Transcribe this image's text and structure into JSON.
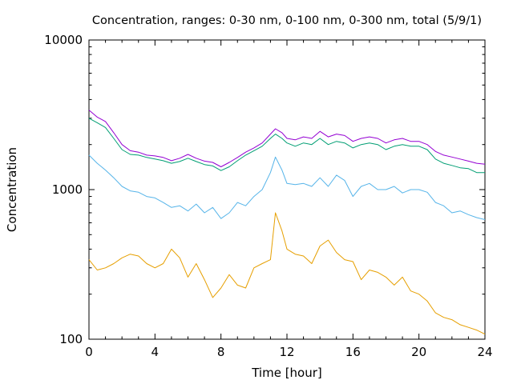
{
  "chart_data": {
    "type": "line",
    "title": "Concentration, ranges: 0-30 nm, 0-100 nm, 0-300 nm, total (5/9/1)",
    "xlabel": "Time [hour]",
    "ylabel": "Concentration",
    "xlim": [
      0,
      24
    ],
    "ylim": [
      100,
      10000
    ],
    "yscale": "log",
    "grid": false,
    "xticks": [
      0,
      4,
      8,
      12,
      16,
      20,
      24
    ],
    "xtick_labels": [
      "0",
      "4",
      "8",
      "12",
      "16",
      "20",
      "24"
    ],
    "yticks": [
      100,
      1000,
      10000
    ],
    "ytick_labels": [
      "100",
      "1000",
      "10000"
    ],
    "series": [
      {
        "color": "#9400d3",
        "x": [
          0,
          0.5,
          1,
          1.5,
          2,
          2.5,
          3,
          3.5,
          4,
          4.5,
          5,
          5.5,
          6,
          6.5,
          7,
          7.5,
          8,
          8.5,
          9,
          9.5,
          10,
          10.5,
          11,
          11.3,
          11.7,
          12,
          12.5,
          13,
          13.5,
          14,
          14.5,
          15,
          15.5,
          16,
          16.5,
          17,
          17.5,
          18,
          18.5,
          19,
          19.5,
          20,
          20.5,
          21,
          21.5,
          22,
          22.5,
          23,
          23.5,
          24
        ],
        "values": [
          3400,
          3050,
          2850,
          2400,
          2000,
          1820,
          1780,
          1700,
          1680,
          1640,
          1560,
          1620,
          1720,
          1620,
          1550,
          1520,
          1420,
          1520,
          1640,
          1780,
          1900,
          2050,
          2350,
          2550,
          2400,
          2200,
          2150,
          2250,
          2200,
          2450,
          2250,
          2350,
          2300,
          2100,
          2200,
          2250,
          2200,
          2050,
          2150,
          2200,
          2100,
          2100,
          2000,
          1800,
          1700,
          1650,
          1600,
          1550,
          1500,
          1480
        ]
      },
      {
        "color": "#009e73",
        "x": [
          0,
          0.5,
          1,
          1.5,
          2,
          2.5,
          3,
          3.5,
          4,
          4.5,
          5,
          5.5,
          6,
          6.5,
          7,
          7.5,
          8,
          8.5,
          9,
          9.5,
          10,
          10.5,
          11,
          11.3,
          11.7,
          12,
          12.5,
          13,
          13.5,
          14,
          14.5,
          15,
          15.5,
          16,
          16.5,
          17,
          17.5,
          18,
          18.5,
          19,
          19.5,
          20,
          20.5,
          21,
          21.5,
          22,
          22.5,
          23,
          23.5,
          24
        ],
        "values": [
          3000,
          2800,
          2600,
          2200,
          1850,
          1720,
          1700,
          1640,
          1600,
          1560,
          1500,
          1540,
          1620,
          1540,
          1470,
          1440,
          1340,
          1420,
          1560,
          1700,
          1820,
          1950,
          2200,
          2350,
          2200,
          2050,
          1950,
          2050,
          2000,
          2200,
          2000,
          2100,
          2050,
          1900,
          2000,
          2050,
          2000,
          1850,
          1950,
          2000,
          1950,
          1950,
          1850,
          1600,
          1500,
          1450,
          1400,
          1380,
          1300,
          1300
        ]
      },
      {
        "color": "#56b4e9",
        "x": [
          0,
          0.5,
          1,
          1.5,
          2,
          2.5,
          3,
          3.5,
          4,
          4.5,
          5,
          5.5,
          6,
          6.5,
          7,
          7.5,
          8,
          8.5,
          9,
          9.5,
          10,
          10.5,
          11,
          11.3,
          11.7,
          12,
          12.5,
          13,
          13.5,
          14,
          14.5,
          15,
          15.5,
          16,
          16.5,
          17,
          17.5,
          18,
          18.5,
          19,
          19.5,
          20,
          20.5,
          21,
          21.5,
          22,
          22.5,
          23,
          23.5,
          24
        ],
        "values": [
          1700,
          1500,
          1350,
          1200,
          1050,
          980,
          960,
          900,
          880,
          820,
          760,
          780,
          720,
          800,
          700,
          760,
          640,
          700,
          820,
          780,
          900,
          1000,
          1300,
          1650,
          1350,
          1100,
          1080,
          1100,
          1050,
          1200,
          1050,
          1250,
          1150,
          900,
          1050,
          1100,
          1000,
          1000,
          1050,
          950,
          1000,
          1000,
          960,
          820,
          780,
          700,
          720,
          680,
          650,
          630
        ]
      },
      {
        "color": "#e69f00",
        "x": [
          0,
          0.5,
          1,
          1.5,
          2,
          2.5,
          3,
          3.5,
          4,
          4.5,
          5,
          5.5,
          6,
          6.5,
          7,
          7.5,
          8,
          8.5,
          9,
          9.5,
          10,
          10.5,
          11,
          11.3,
          11.7,
          12,
          12.5,
          13,
          13.5,
          14,
          14.5,
          15,
          15.5,
          16,
          16.5,
          17,
          17.5,
          18,
          18.5,
          19,
          19.5,
          20,
          20.5,
          21,
          21.5,
          22,
          22.5,
          23,
          23.5,
          24
        ],
        "values": [
          340,
          290,
          300,
          320,
          350,
          370,
          360,
          320,
          300,
          320,
          400,
          350,
          260,
          320,
          250,
          190,
          220,
          270,
          230,
          220,
          300,
          320,
          340,
          700,
          530,
          400,
          370,
          360,
          320,
          420,
          460,
          380,
          340,
          330,
          250,
          290,
          280,
          260,
          230,
          260,
          210,
          200,
          180,
          150,
          140,
          135,
          125,
          120,
          115,
          108
        ]
      }
    ]
  }
}
